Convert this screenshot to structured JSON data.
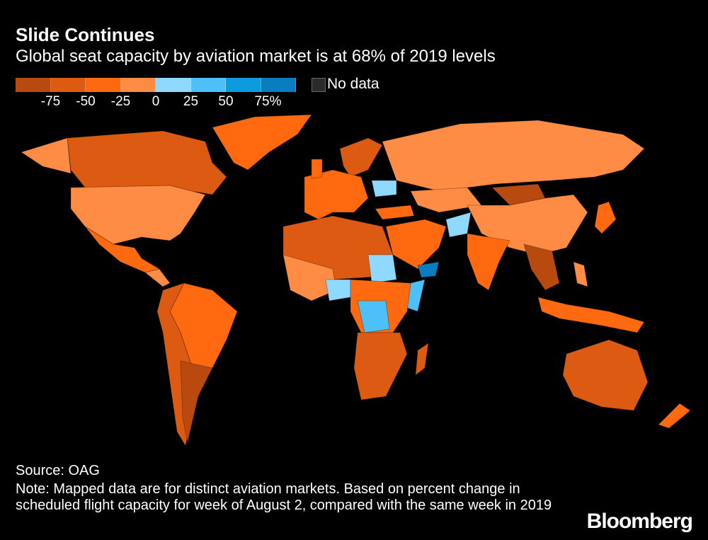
{
  "title": "Slide Continues",
  "subtitle": "Global seat capacity by aviation market is at 68% of 2019 levels",
  "legend": {
    "bins": [
      {
        "range": "-100 to -75",
        "color": "#b84a0f"
      },
      {
        "range": "-75 to -50",
        "color": "#dd5a12"
      },
      {
        "range": "-50 to -25",
        "color": "#ff6a10"
      },
      {
        "range": "-25 to 0",
        "color": "#ff8c45"
      },
      {
        "range": "0 to 25",
        "color": "#8fd8ff"
      },
      {
        "range": "25 to 50",
        "color": "#4dc0f7"
      },
      {
        "range": "50 to 75",
        "color": "#0d9be0"
      },
      {
        "range": "75+",
        "color": "#0a7cc0"
      }
    ],
    "ticks": [
      "-75",
      "-50",
      "-25",
      "0",
      "25",
      "50",
      "75%"
    ],
    "no_data_label": "No data",
    "no_data_color": "#2b2b2b"
  },
  "source": "Source: OAG",
  "note": "Note: Mapped data are for distinct aviation markets. Based on percent change in scheduled flight capacity for week of August 2, compared with the same week in 2019",
  "logo": "Bloomberg"
}
